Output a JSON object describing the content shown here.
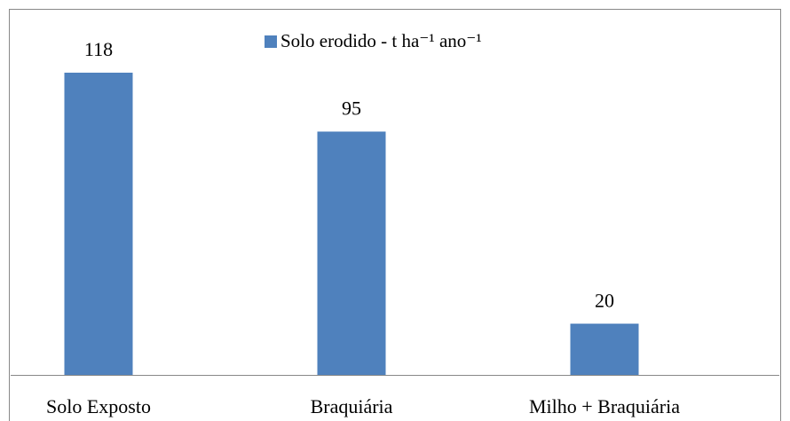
{
  "chart_data": {
    "type": "bar",
    "categories": [
      "Solo Exposto",
      "Braquiária",
      "Milho + Braquiária"
    ],
    "series": [
      {
        "name": "Solo erodido  - t ha⁻¹ ano⁻¹",
        "color": "#4f81bd",
        "values": [
          118,
          95,
          20
        ]
      }
    ],
    "legend": "top"
  }
}
